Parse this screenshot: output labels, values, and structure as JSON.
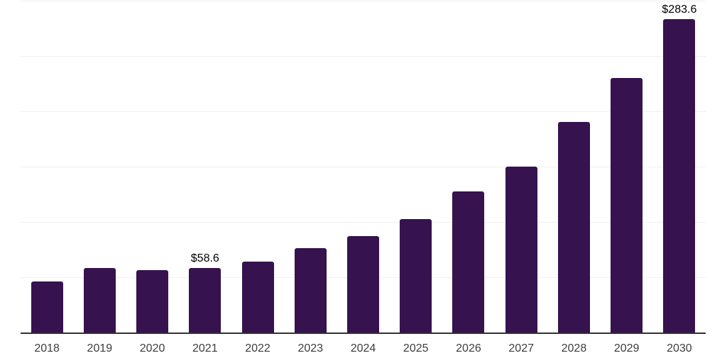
{
  "chart_data": {
    "type": "bar",
    "title": "",
    "xlabel": "",
    "ylabel": "",
    "categories": [
      "2018",
      "2019",
      "2020",
      "2021",
      "2022",
      "2023",
      "2024",
      "2025",
      "2026",
      "2027",
      "2028",
      "2029",
      "2030"
    ],
    "values": [
      46.2,
      58.3,
      56.5,
      58.6,
      64.2,
      76.6,
      86.9,
      102.3,
      127.4,
      150.2,
      190.4,
      230.3,
      283.6
    ],
    "data_labels": {
      "2021": "$58.6",
      "2030": "$283.6"
    },
    "ylim": [
      0,
      300
    ],
    "gridline_step": 50,
    "grid": true,
    "legend": false,
    "y_axis_labels_visible": false,
    "bar_color": "#36124e",
    "grid_color": "#f0f0f0",
    "axis_color": "#333333",
    "tick_color": "#3d3d3d",
    "value_label_color": "#000000",
    "background": "#ffffff"
  }
}
